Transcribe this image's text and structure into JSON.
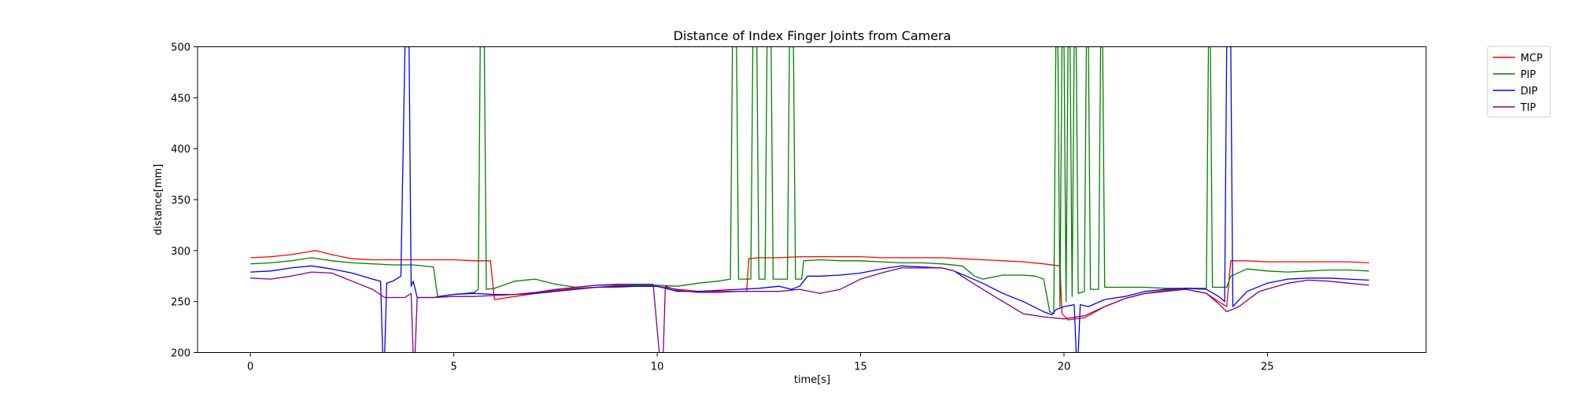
{
  "chart_data": {
    "type": "line",
    "title": "Distance of Index Finger Joints from Camera",
    "xlabel": "time[s]",
    "ylabel": "distance[mm]",
    "xlim": [
      -1.3,
      28.9
    ],
    "ylim": [
      200,
      500
    ],
    "xticks": [
      0,
      5,
      10,
      15,
      20,
      25
    ],
    "yticks": [
      200,
      250,
      300,
      350,
      400,
      450,
      500
    ],
    "grid": false,
    "legend_position": "outside-top-right",
    "series": [
      {
        "name": "MCP",
        "color": "#ff0000",
        "points": [
          [
            0,
            293
          ],
          [
            0.5,
            294
          ],
          [
            1,
            296
          ],
          [
            1.3,
            298
          ],
          [
            1.6,
            300
          ],
          [
            2,
            296
          ],
          [
            2.5,
            292
          ],
          [
            3,
            291
          ],
          [
            3.5,
            291
          ],
          [
            4,
            291
          ],
          [
            4.5,
            291
          ],
          [
            5,
            291
          ],
          [
            5.5,
            290
          ],
          [
            5.9,
            290
          ],
          [
            6.0,
            252
          ],
          [
            6.5,
            255
          ],
          [
            7,
            258
          ],
          [
            7.5,
            261
          ],
          [
            8,
            263
          ],
          [
            8.5,
            264
          ],
          [
            9,
            264
          ],
          [
            9.5,
            265
          ],
          [
            10,
            265
          ],
          [
            10.5,
            262
          ],
          [
            11,
            260
          ],
          [
            11.5,
            260
          ],
          [
            12,
            260
          ],
          [
            12.2,
            260
          ],
          [
            12.25,
            292
          ],
          [
            12.5,
            293
          ],
          [
            13,
            293
          ],
          [
            13.5,
            294
          ],
          [
            14,
            294
          ],
          [
            14.5,
            294
          ],
          [
            15,
            294
          ],
          [
            15.5,
            293
          ],
          [
            16,
            293
          ],
          [
            16.5,
            293
          ],
          [
            17,
            293
          ],
          [
            17.5,
            292
          ],
          [
            18,
            291
          ],
          [
            18.5,
            290
          ],
          [
            19,
            289
          ],
          [
            19.5,
            287
          ],
          [
            19.9,
            285
          ],
          [
            19.95,
            238
          ],
          [
            20.1,
            232
          ],
          [
            20.5,
            234
          ],
          [
            21,
            245
          ],
          [
            21.5,
            253
          ],
          [
            22,
            258
          ],
          [
            22.5,
            261
          ],
          [
            23,
            262
          ],
          [
            23.5,
            258
          ],
          [
            23.8,
            250
          ],
          [
            24,
            245
          ],
          [
            24.1,
            290
          ],
          [
            24.5,
            290
          ],
          [
            25,
            289
          ],
          [
            25.5,
            289
          ],
          [
            26,
            289
          ],
          [
            26.5,
            289
          ],
          [
            27,
            289
          ],
          [
            27.5,
            288
          ]
        ]
      },
      {
        "name": "PIP",
        "color": "#008000",
        "points": [
          [
            0,
            287
          ],
          [
            0.5,
            288
          ],
          [
            1,
            290
          ],
          [
            1.5,
            293
          ],
          [
            2,
            290
          ],
          [
            2.5,
            288
          ],
          [
            3,
            287
          ],
          [
            3.5,
            286
          ],
          [
            4,
            286
          ],
          [
            4.5,
            284
          ],
          [
            4.6,
            255
          ],
          [
            5,
            257
          ],
          [
            5.5,
            259
          ],
          [
            5.6,
            262
          ],
          [
            5.65,
            500
          ],
          [
            5.75,
            500
          ],
          [
            5.8,
            262
          ],
          [
            6,
            263
          ],
          [
            6.5,
            270
          ],
          [
            7,
            272
          ],
          [
            7.5,
            267
          ],
          [
            8,
            264
          ],
          [
            8.5,
            266
          ],
          [
            9,
            266
          ],
          [
            9.5,
            266
          ],
          [
            10,
            266
          ],
          [
            10.5,
            265
          ],
          [
            11,
            268
          ],
          [
            11.5,
            270
          ],
          [
            11.8,
            272
          ],
          [
            11.85,
            500
          ],
          [
            11.95,
            500
          ],
          [
            12.0,
            272
          ],
          [
            12.3,
            272
          ],
          [
            12.35,
            500
          ],
          [
            12.45,
            500
          ],
          [
            12.5,
            272
          ],
          [
            12.65,
            272
          ],
          [
            12.7,
            500
          ],
          [
            12.8,
            500
          ],
          [
            12.85,
            272
          ],
          [
            13.2,
            272
          ],
          [
            13.25,
            500
          ],
          [
            13.35,
            500
          ],
          [
            13.4,
            272
          ],
          [
            13.55,
            272
          ],
          [
            13.6,
            290
          ],
          [
            14,
            291
          ],
          [
            14.5,
            290
          ],
          [
            15,
            290
          ],
          [
            15.5,
            289
          ],
          [
            16,
            288
          ],
          [
            16.5,
            288
          ],
          [
            17,
            287
          ],
          [
            17.5,
            285
          ],
          [
            17.8,
            275
          ],
          [
            18,
            272
          ],
          [
            18.5,
            276
          ],
          [
            19,
            276
          ],
          [
            19.3,
            275
          ],
          [
            19.5,
            272
          ],
          [
            19.65,
            240
          ],
          [
            19.75,
            238
          ],
          [
            19.8,
            500
          ],
          [
            19.85,
            500
          ],
          [
            19.9,
            245
          ],
          [
            19.95,
            500
          ],
          [
            20.0,
            500
          ],
          [
            20.05,
            250
          ],
          [
            20.1,
            500
          ],
          [
            20.15,
            500
          ],
          [
            20.2,
            255
          ],
          [
            20.25,
            500
          ],
          [
            20.3,
            500
          ],
          [
            20.35,
            258
          ],
          [
            20.5,
            260
          ],
          [
            20.55,
            500
          ],
          [
            20.6,
            500
          ],
          [
            20.65,
            262
          ],
          [
            20.85,
            262
          ],
          [
            20.9,
            500
          ],
          [
            20.95,
            500
          ],
          [
            21.0,
            264
          ],
          [
            21.5,
            264
          ],
          [
            22,
            264
          ],
          [
            22.5,
            263
          ],
          [
            23,
            263
          ],
          [
            23.5,
            263
          ],
          [
            23.55,
            500
          ],
          [
            23.6,
            500
          ],
          [
            23.65,
            264
          ],
          [
            24.0,
            264
          ],
          [
            24.1,
            275
          ],
          [
            24.5,
            282
          ],
          [
            25,
            280
          ],
          [
            25.5,
            279
          ],
          [
            26,
            280
          ],
          [
            26.5,
            281
          ],
          [
            27,
            281
          ],
          [
            27.5,
            280
          ]
        ]
      },
      {
        "name": "DIP",
        "color": "#0000ff",
        "points": [
          [
            0,
            279
          ],
          [
            0.5,
            280
          ],
          [
            1,
            283
          ],
          [
            1.5,
            285
          ],
          [
            2,
            282
          ],
          [
            2.5,
            278
          ],
          [
            3,
            272
          ],
          [
            3.2,
            270
          ],
          [
            3.25,
            200
          ],
          [
            3.3,
            200
          ],
          [
            3.35,
            268
          ],
          [
            3.5,
            270
          ],
          [
            3.7,
            275
          ],
          [
            3.8,
            500
          ],
          [
            3.9,
            500
          ],
          [
            3.95,
            265
          ],
          [
            4.0,
            270
          ],
          [
            4.1,
            254
          ],
          [
            4.5,
            254
          ],
          [
            5,
            257
          ],
          [
            5.5,
            258
          ],
          [
            6,
            257
          ],
          [
            6.5,
            257
          ],
          [
            7,
            258
          ],
          [
            7.5,
            260
          ],
          [
            8,
            262
          ],
          [
            8.5,
            264
          ],
          [
            9,
            265
          ],
          [
            9.5,
            265
          ],
          [
            10,
            265
          ],
          [
            10.5,
            260
          ],
          [
            11,
            260
          ],
          [
            11.5,
            261
          ],
          [
            12,
            262
          ],
          [
            12.5,
            263
          ],
          [
            13,
            265
          ],
          [
            13.3,
            262
          ],
          [
            13.5,
            265
          ],
          [
            13.7,
            275
          ],
          [
            14,
            275
          ],
          [
            14.5,
            276
          ],
          [
            15,
            278
          ],
          [
            15.5,
            282
          ],
          [
            16,
            285
          ],
          [
            16.5,
            284
          ],
          [
            17,
            283
          ],
          [
            17.3,
            280
          ],
          [
            17.6,
            275
          ],
          [
            18,
            268
          ],
          [
            18.5,
            258
          ],
          [
            19,
            250
          ],
          [
            19.5,
            240
          ],
          [
            19.7,
            237
          ],
          [
            19.8,
            242
          ],
          [
            20,
            245
          ],
          [
            20.25,
            247
          ],
          [
            20.3,
            200
          ],
          [
            20.35,
            200
          ],
          [
            20.4,
            247
          ],
          [
            20.6,
            245
          ],
          [
            21,
            252
          ],
          [
            21.5,
            255
          ],
          [
            22,
            260
          ],
          [
            22.5,
            262
          ],
          [
            23,
            263
          ],
          [
            23.5,
            262
          ],
          [
            23.8,
            255
          ],
          [
            23.95,
            250
          ],
          [
            24.0,
            500
          ],
          [
            24.1,
            500
          ],
          [
            24.15,
            245
          ],
          [
            24.5,
            260
          ],
          [
            25,
            268
          ],
          [
            25.5,
            272
          ],
          [
            26,
            273
          ],
          [
            26.5,
            273
          ],
          [
            27,
            272
          ],
          [
            27.5,
            271
          ]
        ]
      },
      {
        "name": "TIP",
        "color": "#800080",
        "points": [
          [
            0,
            273
          ],
          [
            0.5,
            272
          ],
          [
            1,
            275
          ],
          [
            1.5,
            279
          ],
          [
            2,
            278
          ],
          [
            2.5,
            270
          ],
          [
            3,
            262
          ],
          [
            3.3,
            254
          ],
          [
            3.8,
            254
          ],
          [
            3.95,
            258
          ],
          [
            4.0,
            200
          ],
          [
            4.05,
            200
          ],
          [
            4.1,
            254
          ],
          [
            4.5,
            254
          ],
          [
            5,
            255
          ],
          [
            5.5,
            255
          ],
          [
            6,
            256
          ],
          [
            6.5,
            257
          ],
          [
            7,
            259
          ],
          [
            7.5,
            262
          ],
          [
            8,
            264
          ],
          [
            8.5,
            266
          ],
          [
            9,
            267
          ],
          [
            9.5,
            267
          ],
          [
            9.9,
            267
          ],
          [
            10.05,
            200
          ],
          [
            10.15,
            200
          ],
          [
            10.2,
            265
          ],
          [
            10.5,
            261
          ],
          [
            11,
            259
          ],
          [
            11.5,
            259
          ],
          [
            12,
            260
          ],
          [
            12.5,
            260
          ],
          [
            13,
            260
          ],
          [
            13.5,
            262
          ],
          [
            14,
            258
          ],
          [
            14.5,
            262
          ],
          [
            15,
            272
          ],
          [
            15.5,
            278
          ],
          [
            16,
            283
          ],
          [
            16.5,
            283
          ],
          [
            17,
            283
          ],
          [
            17.3,
            280
          ],
          [
            17.6,
            272
          ],
          [
            18,
            262
          ],
          [
            18.5,
            250
          ],
          [
            19,
            238
          ],
          [
            19.5,
            235
          ],
          [
            20,
            233
          ],
          [
            20.5,
            236
          ],
          [
            21,
            245
          ],
          [
            21.5,
            253
          ],
          [
            22,
            258
          ],
          [
            22.5,
            260
          ],
          [
            23,
            262
          ],
          [
            23.5,
            258
          ],
          [
            23.8,
            248
          ],
          [
            24,
            240
          ],
          [
            24.3,
            245
          ],
          [
            24.8,
            260
          ],
          [
            25.5,
            268
          ],
          [
            26,
            271
          ],
          [
            26.5,
            270
          ],
          [
            27,
            268
          ],
          [
            27.5,
            266
          ]
        ]
      }
    ]
  }
}
